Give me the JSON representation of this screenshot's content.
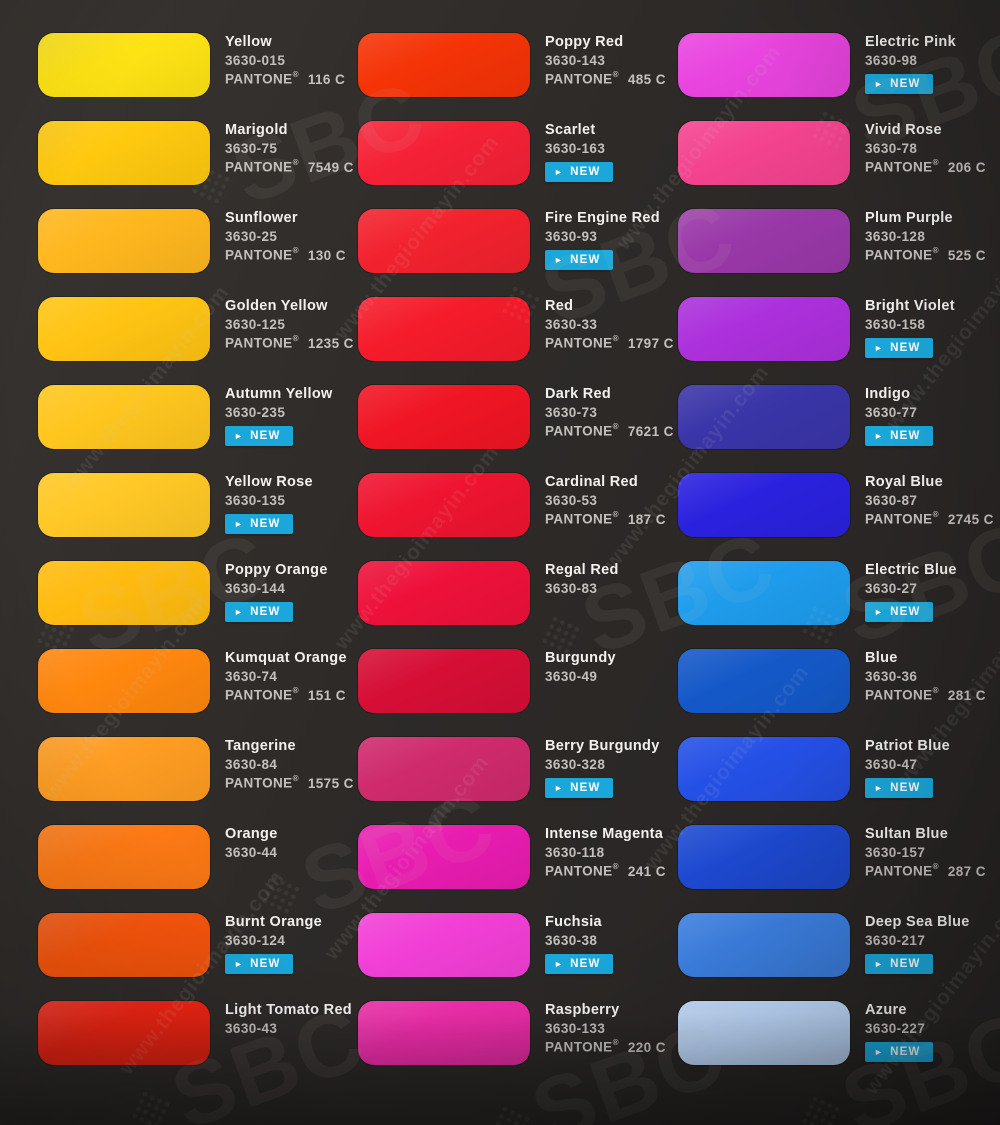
{
  "labels": {
    "pantone": "PANTONE",
    "registered": "®",
    "new": "NEW",
    "play_icon": "►"
  },
  "watermark": {
    "url": "www.thegioimayin.com",
    "logo": "SBC"
  },
  "colors": {
    "background": "#2d2a28",
    "new_badge": "#1ba7da",
    "name_text": "#f3f1ee",
    "muted_text": "#c3c0bd"
  },
  "columns": [
    {
      "id": "yellows-oranges",
      "swatches": [
        {
          "name": "Yellow",
          "code": "3630-015",
          "pantone": "116 C",
          "new": false,
          "color": "#FFE414"
        },
        {
          "name": "Marigold",
          "code": "3630-75",
          "pantone": "7549 C",
          "new": false,
          "color": "#FFC90F"
        },
        {
          "name": "Sunflower",
          "code": "3630-25",
          "pantone": "130 C",
          "new": false,
          "color": "#FFB71E"
        },
        {
          "name": "Golden Yellow",
          "code": "3630-125",
          "pantone": "1235 C",
          "new": false,
          "color": "#FFC413"
        },
        {
          "name": "Autumn Yellow",
          "code": "3630-235",
          "pantone": null,
          "new": true,
          "color": "#FFC61E"
        },
        {
          "name": "Yellow Rose",
          "code": "3630-135",
          "pantone": null,
          "new": true,
          "color": "#FFC826"
        },
        {
          "name": "Poppy Orange",
          "code": "3630-144",
          "pantone": null,
          "new": true,
          "color": "#FFBB0F"
        },
        {
          "name": "Kumquat Orange",
          "code": "3630-74",
          "pantone": "151 C",
          "new": false,
          "color": "#FF870E"
        },
        {
          "name": "Tangerine",
          "code": "3630-84",
          "pantone": "1575 C",
          "new": false,
          "color": "#FF9D22"
        },
        {
          "name": "Orange",
          "code": "3630-44",
          "pantone": null,
          "new": false,
          "color": "#FF7A15"
        },
        {
          "name": "Burnt Orange",
          "code": "3630-124",
          "pantone": null,
          "new": true,
          "color": "#FA560C"
        },
        {
          "name": "Light Tomato Red",
          "code": "3630-43",
          "pantone": null,
          "new": false,
          "color": "#EE2413"
        }
      ]
    },
    {
      "id": "reds-magentas",
      "swatches": [
        {
          "name": "Poppy Red",
          "code": "3630-143",
          "pantone": "485 C",
          "new": false,
          "color": "#F53307"
        },
        {
          "name": "Scarlet",
          "code": "3630-163",
          "pantone": null,
          "new": true,
          "color": "#F52136"
        },
        {
          "name": "Fire Engine Red",
          "code": "3630-93",
          "pantone": null,
          "new": true,
          "color": "#F2222E"
        },
        {
          "name": "Red",
          "code": "3630-33",
          "pantone": "1797 C",
          "new": false,
          "color": "#F51B2B"
        },
        {
          "name": "Dark Red",
          "code": "3630-73",
          "pantone": "7621 C",
          "new": false,
          "color": "#F01524"
        },
        {
          "name": "Cardinal Red",
          "code": "3630-53",
          "pantone": "187 C",
          "new": false,
          "color": "#EF1430"
        },
        {
          "name": "Regal Red",
          "code": "3630-83",
          "pantone": null,
          "new": false,
          "color": "#EE113A"
        },
        {
          "name": "Burgundy",
          "code": "3630-49",
          "pantone": null,
          "new": false,
          "color": "#D60E36"
        },
        {
          "name": "Berry Burgundy",
          "code": "3630-328",
          "pantone": null,
          "new": true,
          "color": "#CF2A6C"
        },
        {
          "name": "Intense Magenta",
          "code": "3630-118",
          "pantone": "241 C",
          "new": false,
          "color": "#E81CB0"
        },
        {
          "name": "Fuchsia",
          "code": "3630-38",
          "pantone": null,
          "new": true,
          "color": "#F23FD6"
        },
        {
          "name": "Raspberry",
          "code": "3630-133",
          "pantone": "220 C",
          "new": false,
          "color": "#EC2CA8"
        }
      ]
    },
    {
      "id": "pinks-purples-blues",
      "swatches": [
        {
          "name": "Electric Pink",
          "code": "3630-98",
          "pantone": null,
          "new": true,
          "color": "#E944DF"
        },
        {
          "name": "Vivid Rose",
          "code": "3630-78",
          "pantone": "206 C",
          "new": false,
          "color": "#F4438F"
        },
        {
          "name": "Plum Purple",
          "code": "3630-128",
          "pantone": "525 C",
          "new": false,
          "color": "#9938A8"
        },
        {
          "name": "Bright Violet",
          "code": "3630-158",
          "pantone": null,
          "new": true,
          "color": "#AC30DC"
        },
        {
          "name": "Indigo",
          "code": "3630-77",
          "pantone": null,
          "new": true,
          "color": "#3A35A8"
        },
        {
          "name": "Royal Blue",
          "code": "3630-87",
          "pantone": "2745 C",
          "new": false,
          "color": "#2A21DE"
        },
        {
          "name": "Electric Blue",
          "code": "3630-27",
          "pantone": null,
          "new": true,
          "color": "#1E9CEC"
        },
        {
          "name": "Blue",
          "code": "3630-36",
          "pantone": "281 C",
          "new": false,
          "color": "#1458C8"
        },
        {
          "name": "Patriot Blue",
          "code": "3630-47",
          "pantone": null,
          "new": true,
          "color": "#2450E6"
        },
        {
          "name": "Sultan Blue",
          "code": "3630-157",
          "pantone": "287 C",
          "new": false,
          "color": "#1D49D0"
        },
        {
          "name": "Deep Sea Blue",
          "code": "3630-217",
          "pantone": null,
          "new": true,
          "color": "#3C80E2"
        },
        {
          "name": "Azure",
          "code": "3630-227",
          "pantone": null,
          "new": true,
          "color": "#BCD6F8"
        }
      ]
    }
  ]
}
